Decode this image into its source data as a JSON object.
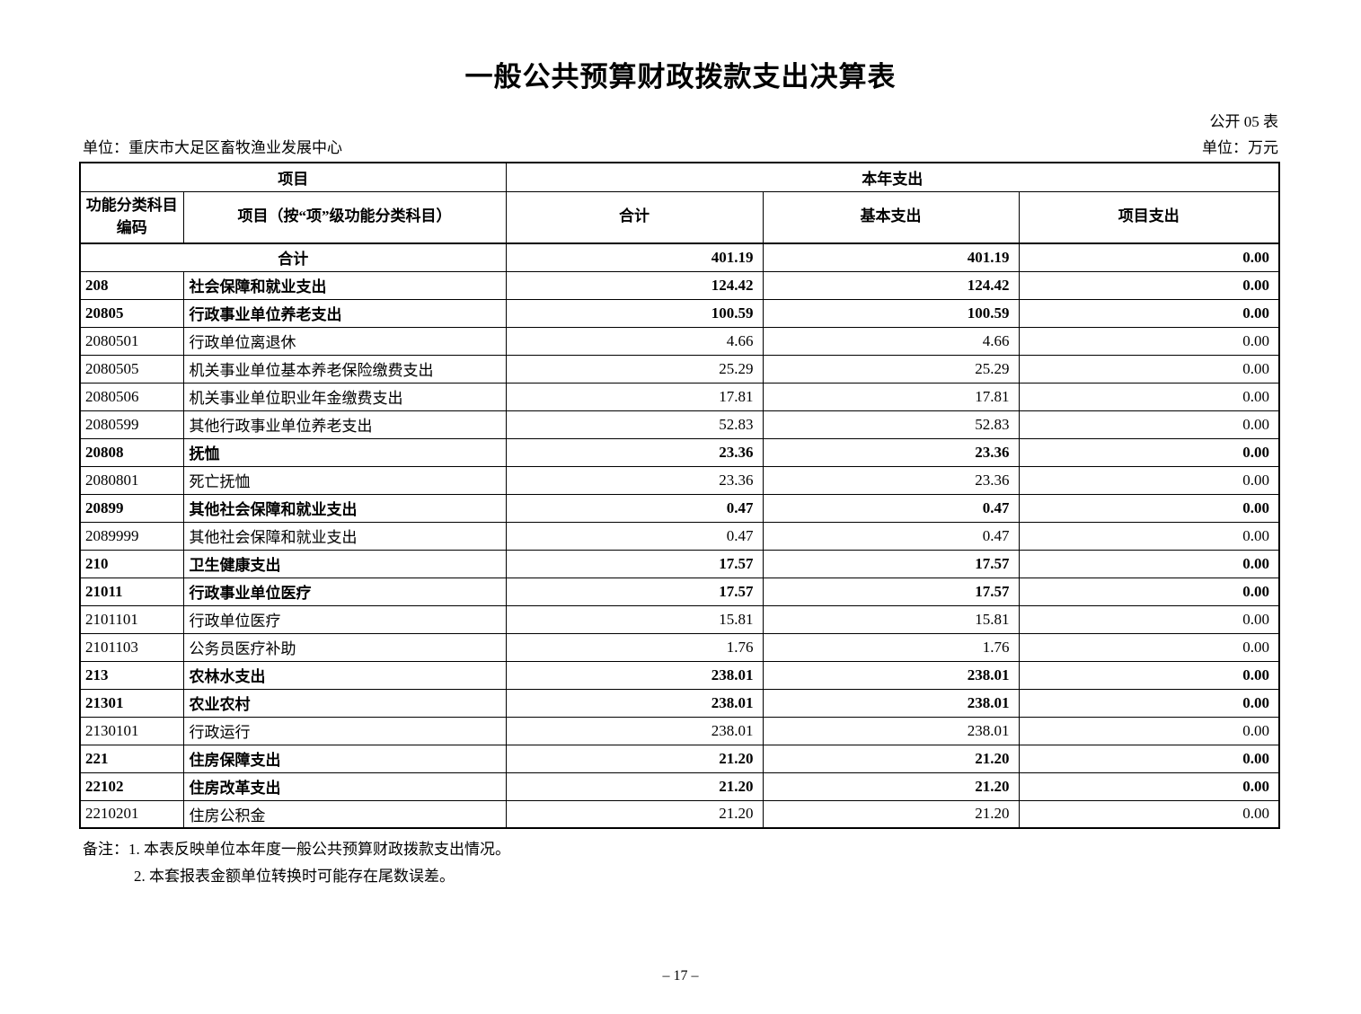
{
  "title": "一般公共预算财政拨款支出决算表",
  "meta": {
    "table_code": "公开 05 表",
    "org_label": "单位：重庆市大足区畜牧渔业发展中心",
    "unit_label": "单位：万元"
  },
  "table": {
    "header": {
      "group_left": "项目",
      "group_right": "本年支出",
      "col_code_line1": "功能分类科目",
      "col_code_line2": "编码",
      "col_item": "项目（按“项”级功能分类科目）",
      "col_total": "合计",
      "col_basic": "基本支出",
      "col_project": "项目支出"
    },
    "rows": [
      {
        "code": "",
        "item": "合计",
        "total": "401.19",
        "basic": "401.19",
        "project": "0.00",
        "bold": true,
        "span": true
      },
      {
        "code": "208",
        "item": "社会保障和就业支出",
        "total": "124.42",
        "basic": "124.42",
        "project": "0.00",
        "bold": true
      },
      {
        "code": "20805",
        "item": "行政事业单位养老支出",
        "total": "100.59",
        "basic": "100.59",
        "project": "0.00",
        "bold": true
      },
      {
        "code": "2080501",
        "item": "行政单位离退休",
        "total": "4.66",
        "basic": "4.66",
        "project": "0.00",
        "bold": false
      },
      {
        "code": "2080505",
        "item": "机关事业单位基本养老保险缴费支出",
        "total": "25.29",
        "basic": "25.29",
        "project": "0.00",
        "bold": false
      },
      {
        "code": "2080506",
        "item": "机关事业单位职业年金缴费支出",
        "total": "17.81",
        "basic": "17.81",
        "project": "0.00",
        "bold": false
      },
      {
        "code": "2080599",
        "item": "其他行政事业单位养老支出",
        "total": "52.83",
        "basic": "52.83",
        "project": "0.00",
        "bold": false
      },
      {
        "code": "20808",
        "item": "抚恤",
        "total": "23.36",
        "basic": "23.36",
        "project": "0.00",
        "bold": true
      },
      {
        "code": "2080801",
        "item": "死亡抚恤",
        "total": "23.36",
        "basic": "23.36",
        "project": "0.00",
        "bold": false
      },
      {
        "code": "20899",
        "item": "其他社会保障和就业支出",
        "total": "0.47",
        "basic": "0.47",
        "project": "0.00",
        "bold": true
      },
      {
        "code": "2089999",
        "item": "其他社会保障和就业支出",
        "total": "0.47",
        "basic": "0.47",
        "project": "0.00",
        "bold": false
      },
      {
        "code": "210",
        "item": "卫生健康支出",
        "total": "17.57",
        "basic": "17.57",
        "project": "0.00",
        "bold": true
      },
      {
        "code": "21011",
        "item": "行政事业单位医疗",
        "total": "17.57",
        "basic": "17.57",
        "project": "0.00",
        "bold": true
      },
      {
        "code": "2101101",
        "item": "行政单位医疗",
        "total": "15.81",
        "basic": "15.81",
        "project": "0.00",
        "bold": false
      },
      {
        "code": "2101103",
        "item": "公务员医疗补助",
        "total": "1.76",
        "basic": "1.76",
        "project": "0.00",
        "bold": false
      },
      {
        "code": "213",
        "item": "农林水支出",
        "total": "238.01",
        "basic": "238.01",
        "project": "0.00",
        "bold": true
      },
      {
        "code": "21301",
        "item": "农业农村",
        "total": "238.01",
        "basic": "238.01",
        "project": "0.00",
        "bold": true
      },
      {
        "code": "2130101",
        "item": "行政运行",
        "total": "238.01",
        "basic": "238.01",
        "project": "0.00",
        "bold": false
      },
      {
        "code": "221",
        "item": "住房保障支出",
        "total": "21.20",
        "basic": "21.20",
        "project": "0.00",
        "bold": true
      },
      {
        "code": "22102",
        "item": "住房改革支出",
        "total": "21.20",
        "basic": "21.20",
        "project": "0.00",
        "bold": true
      },
      {
        "code": "2210201",
        "item": "住房公积金",
        "total": "21.20",
        "basic": "21.20",
        "project": "0.00",
        "bold": false
      }
    ]
  },
  "notes": {
    "label": "备注：",
    "line1": "1. 本表反映单位本年度一般公共预算财政拨款支出情况。",
    "line2": "2. 本套报表金额单位转换时可能存在尾数误差。"
  },
  "page_number": "– 17 –"
}
